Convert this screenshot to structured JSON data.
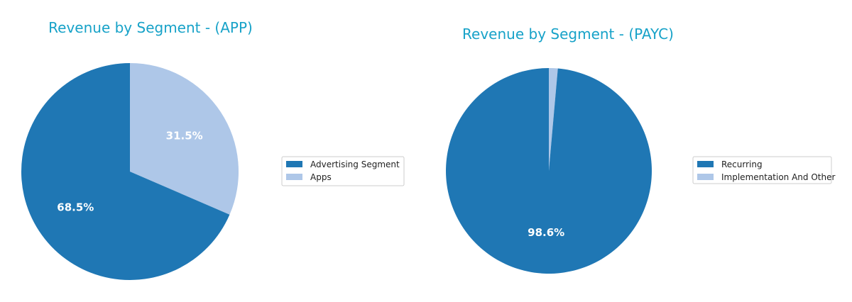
{
  "colors": {
    "title": "#17a2c8",
    "label": "#ffffff",
    "legend_text": "#222222",
    "legend_border": "#cccccc"
  },
  "chart_data": [
    {
      "type": "pie",
      "title": "Revenue by Segment - (APP)",
      "legend_position": "right",
      "start_angle_deg": 90,
      "direction": "clockwise",
      "slices": [
        {
          "label": "Apps",
          "value": 31.5,
          "display": "31.5%",
          "color": "#aec7e8"
        },
        {
          "label": "Advertising Segment",
          "value": 68.5,
          "display": "68.5%",
          "color": "#1f77b4"
        }
      ],
      "legend": [
        {
          "label": "Advertising Segment",
          "color": "#1f77b4"
        },
        {
          "label": "Apps",
          "color": "#aec7e8"
        }
      ]
    },
    {
      "type": "pie",
      "title": "Revenue by Segment - (PAYC)",
      "legend_position": "right",
      "start_angle_deg": 90,
      "direction": "clockwise",
      "slices": [
        {
          "label": "Implementation And Other",
          "value": 1.4,
          "display": "",
          "color": "#aec7e8"
        },
        {
          "label": "Recurring",
          "value": 98.6,
          "display": "98.6%",
          "color": "#1f77b4"
        }
      ],
      "legend": [
        {
          "label": "Recurring",
          "color": "#1f77b4"
        },
        {
          "label": "Implementation And Other",
          "color": "#aec7e8"
        }
      ]
    }
  ]
}
